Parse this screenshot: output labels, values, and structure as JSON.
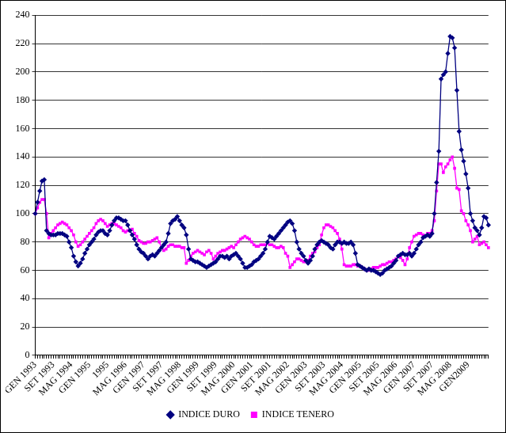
{
  "chart_data": {
    "type": "line",
    "categories": [
      "GEN 1993",
      null,
      null,
      null,
      null,
      null,
      null,
      null,
      "SET 1993",
      null,
      null,
      null,
      null,
      null,
      null,
      null,
      "MAG 1994",
      null,
      null,
      null,
      null,
      null,
      null,
      null,
      "GEN 1995",
      null,
      null,
      null,
      null,
      null,
      null,
      null,
      "1995",
      null,
      null,
      null,
      null,
      null,
      null,
      null,
      "MAG 1996",
      null,
      null,
      null,
      null,
      null,
      null,
      null,
      "GEN 1997",
      null,
      null,
      null,
      null,
      null,
      null,
      null,
      "SET 1997",
      null,
      null,
      null,
      null,
      null,
      null,
      null,
      "MAG 1998",
      null,
      null,
      null,
      null,
      null,
      null,
      null,
      "GEN 1999",
      null,
      null,
      null,
      null,
      null,
      null,
      null,
      "SET 1999",
      null,
      null,
      null,
      null,
      null,
      null,
      null,
      "MAG 2000",
      null,
      null,
      null,
      null,
      null,
      null,
      null,
      "GEN 2001",
      null,
      null,
      null,
      null,
      null,
      null,
      null,
      "SET 2001",
      null,
      null,
      null,
      null,
      null,
      null,
      null,
      "MAG 2002",
      null,
      null,
      null,
      null,
      null,
      null,
      null,
      "GEN 2003",
      null,
      null,
      null,
      null,
      null,
      null,
      null,
      "SET 2003",
      null,
      null,
      null,
      null,
      null,
      null,
      null,
      "MAG 2004",
      null,
      null,
      null,
      null,
      null,
      null,
      null,
      "GEN 2005",
      null,
      null,
      null,
      null,
      null,
      null,
      null,
      "SET 2005",
      null,
      null,
      null,
      null,
      null,
      null,
      null,
      "MAG 2006",
      null,
      null,
      null,
      null,
      null,
      null,
      null,
      "GEN 2007",
      null,
      null,
      null,
      null,
      null,
      null,
      null,
      "SET 2007",
      null,
      null,
      null,
      null,
      null,
      null,
      null,
      "MAG 2008",
      null,
      null,
      null,
      null,
      null,
      null,
      null,
      "GEN2009",
      null,
      null,
      null,
      null,
      null,
      null,
      null,
      null,
      null
    ],
    "series": [
      {
        "name": "INDICE DURO",
        "color": "#000080",
        "marker": "diamond",
        "values": [
          100,
          108,
          116,
          123,
          124,
          88,
          86,
          85,
          85,
          85,
          86,
          86,
          86,
          85,
          84,
          80,
          76,
          70,
          66,
          63,
          65,
          68,
          72,
          75,
          78,
          80,
          82,
          85,
          87,
          88,
          88,
          86,
          85,
          88,
          92,
          95,
          97,
          97,
          96,
          95,
          95,
          92,
          88,
          85,
          82,
          78,
          75,
          73,
          72,
          70,
          68,
          70,
          71,
          70,
          72,
          74,
          76,
          78,
          80,
          86,
          93,
          95,
          96,
          98,
          95,
          92,
          90,
          85,
          75,
          68,
          67,
          66,
          66,
          65,
          64,
          63,
          62,
          63,
          64,
          65,
          66,
          68,
          70,
          70,
          69,
          70,
          68,
          70,
          71,
          72,
          70,
          68,
          65,
          62,
          62,
          63,
          64,
          66,
          67,
          68,
          70,
          72,
          75,
          80,
          84,
          83,
          82,
          84,
          86,
          88,
          90,
          92,
          94,
          95,
          93,
          88,
          80,
          75,
          72,
          70,
          67,
          65,
          67,
          70,
          75,
          78,
          80,
          81,
          80,
          79,
          78,
          76,
          75,
          78,
          80,
          80,
          79,
          80,
          79,
          79,
          80,
          78,
          72,
          64,
          63,
          62,
          61,
          60,
          61,
          60,
          60,
          59,
          58,
          57,
          58,
          60,
          61,
          62,
          63,
          65,
          67,
          70,
          71,
          72,
          71,
          71,
          72,
          70,
          72,
          75,
          78,
          80,
          83,
          84,
          85,
          84,
          86,
          100,
          122,
          144,
          195,
          198,
          200,
          213,
          225,
          224,
          217,
          187,
          158,
          145,
          137,
          128,
          118,
          100,
          95,
          90,
          88,
          85,
          90,
          98,
          97,
          92
        ]
      },
      {
        "name": "INDICE TENERO",
        "color": "#ff00ff",
        "marker": "square",
        "values": [
          100,
          104,
          108,
          110,
          110,
          100,
          83,
          86,
          88,
          90,
          92,
          93,
          94,
          93,
          92,
          90,
          88,
          85,
          80,
          77,
          78,
          80,
          82,
          84,
          86,
          88,
          90,
          93,
          95,
          96,
          95,
          93,
          91,
          92,
          93,
          93,
          92,
          91,
          90,
          88,
          87,
          88,
          88,
          89,
          86,
          84,
          81,
          80,
          79,
          79,
          80,
          80,
          81,
          82,
          83,
          80,
          76,
          74,
          75,
          77,
          78,
          78,
          77,
          77,
          77,
          76,
          76,
          65,
          67,
          70,
          72,
          73,
          74,
          73,
          72,
          71,
          73,
          74,
          72,
          68,
          70,
          72,
          73,
          74,
          74,
          75,
          76,
          77,
          76,
          78,
          80,
          82,
          83,
          84,
          83,
          82,
          80,
          78,
          77,
          77,
          78,
          78,
          78,
          79,
          78,
          78,
          77,
          76,
          76,
          77,
          76,
          72,
          70,
          62,
          64,
          66,
          68,
          68,
          67,
          66,
          66,
          67,
          70,
          72,
          73,
          76,
          78,
          85,
          90,
          92,
          92,
          91,
          90,
          88,
          86,
          82,
          75,
          64,
          63,
          63,
          63,
          64,
          64,
          63,
          63,
          62,
          61,
          60,
          60,
          61,
          62,
          62,
          62,
          63,
          64,
          64,
          65,
          66,
          66,
          67,
          68,
          70,
          69,
          67,
          64,
          68,
          76,
          80,
          84,
          85,
          86,
          86,
          85,
          84,
          86,
          86,
          88,
          95,
          116,
          135,
          135,
          129,
          133,
          135,
          138,
          140,
          132,
          118,
          117,
          102,
          100,
          95,
          92,
          88,
          80,
          82,
          84,
          78,
          79,
          80,
          78,
          76
        ]
      }
    ],
    "ylim": [
      0,
      240
    ],
    "yticks": [
      0,
      20,
      40,
      60,
      80,
      100,
      120,
      140,
      160,
      180,
      200,
      220,
      240
    ],
    "grid": true,
    "legend": "bottom"
  }
}
